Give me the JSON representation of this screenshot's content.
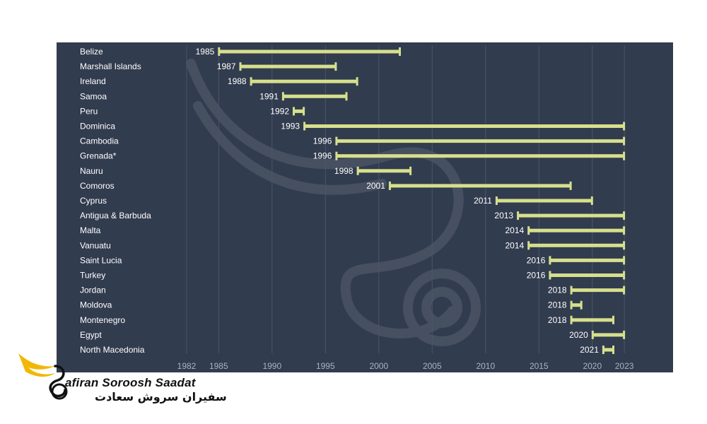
{
  "colors": {
    "panel": "#323c4f",
    "bar": "#d6df8c",
    "grid": "#4a5569",
    "text": "#ffffff",
    "tick": "#aab3c2",
    "logo_gold": "#f2b705"
  },
  "chart_data": {
    "type": "bar",
    "orientation": "horizontal-range",
    "title": "",
    "xlabel": "",
    "ylabel": "",
    "xlim": [
      1982,
      2025
    ],
    "x_ticks": [
      1982,
      1985,
      1990,
      1995,
      2000,
      2005,
      2010,
      2015,
      2020,
      2023
    ],
    "grid": true,
    "legend": "none",
    "rows": [
      {
        "country": "Belize",
        "start": 1985,
        "end": 2002
      },
      {
        "country": "Marshall Islands",
        "start": 1987,
        "end": 1996
      },
      {
        "country": "Ireland",
        "start": 1988,
        "end": 1998
      },
      {
        "country": "Samoa",
        "start": 1991,
        "end": 1997
      },
      {
        "country": "Peru",
        "start": 1992,
        "end": 1993
      },
      {
        "country": "Dominica",
        "start": 1993,
        "end": 2023
      },
      {
        "country": "Cambodia",
        "start": 1996,
        "end": 2023
      },
      {
        "country": "Grenada*",
        "start": 1996,
        "end": 2023
      },
      {
        "country": "Nauru",
        "start": 1998,
        "end": 2003
      },
      {
        "country": "Comoros",
        "start": 2001,
        "end": 2018
      },
      {
        "country": "Cyprus",
        "start": 2011,
        "end": 2020
      },
      {
        "country": "Antigua & Barbuda",
        "start": 2013,
        "end": 2023
      },
      {
        "country": "Malta",
        "start": 2014,
        "end": 2023
      },
      {
        "country": "Vanuatu",
        "start": 2014,
        "end": 2023
      },
      {
        "country": "Saint Lucia",
        "start": 2016,
        "end": 2023
      },
      {
        "country": "Turkey",
        "start": 2016,
        "end": 2023
      },
      {
        "country": "Jordan",
        "start": 2018,
        "end": 2023
      },
      {
        "country": "Moldova",
        "start": 2018,
        "end": 2019
      },
      {
        "country": "Montenegro",
        "start": 2018,
        "end": 2022
      },
      {
        "country": "Egypt",
        "start": 2020,
        "end": 2023
      },
      {
        "country": "North Macedonia",
        "start": 2021,
        "end": 2022
      }
    ]
  },
  "logo": {
    "name_en": "afiran Soroosh Saadat",
    "name_fa": "سفیران سروش سعادت",
    "icon": "wing-swan-logo-icon"
  }
}
